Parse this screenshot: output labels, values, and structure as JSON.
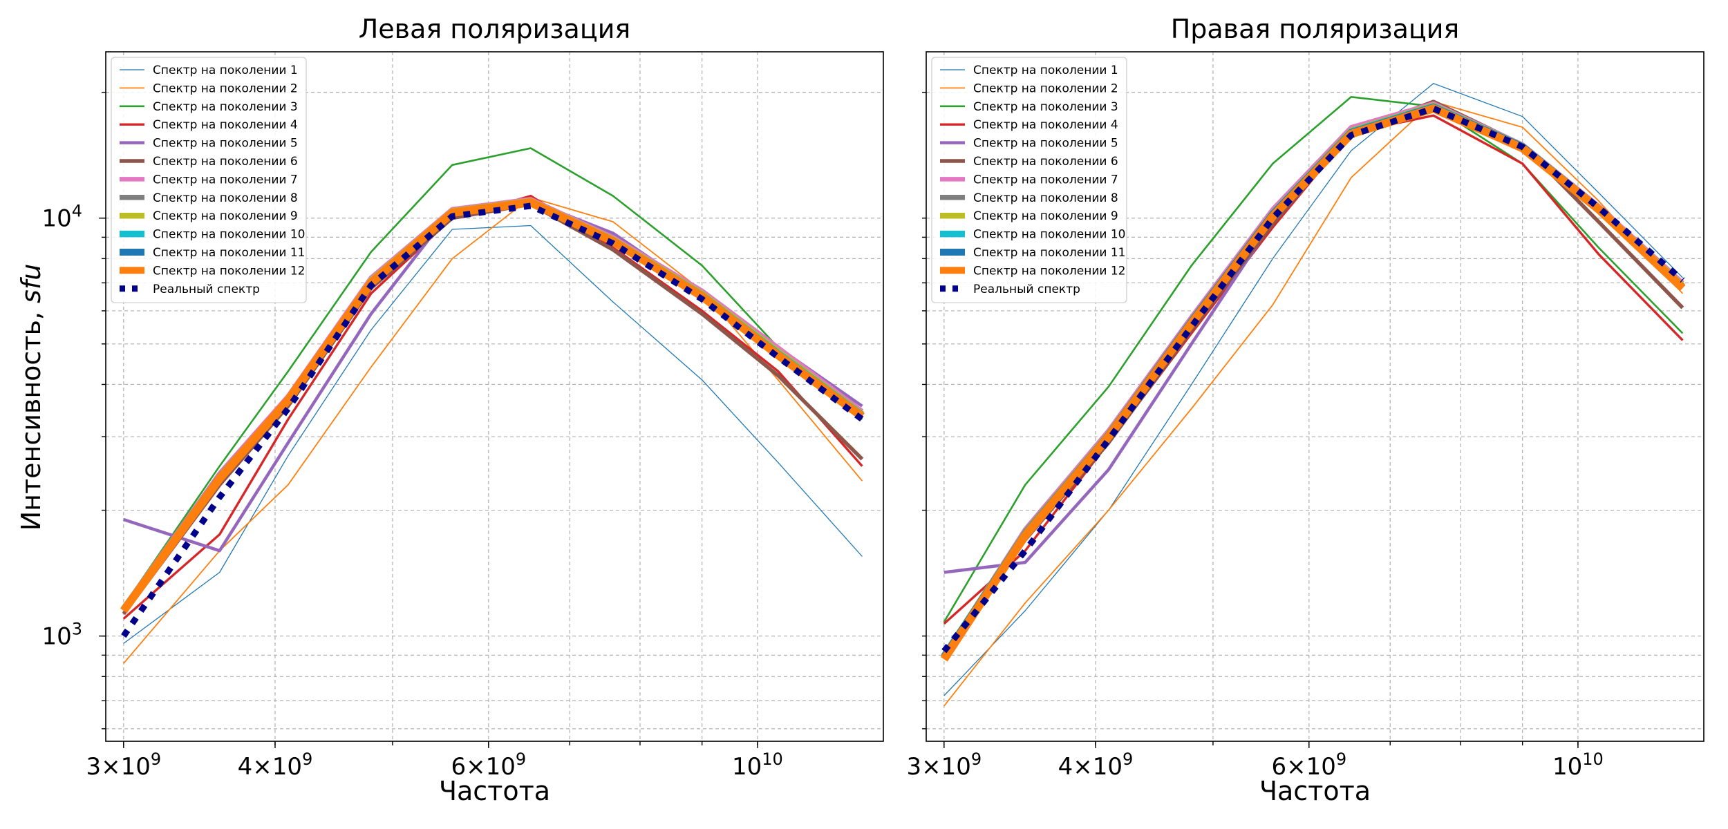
{
  "y_axis_label": "Интенсивность, ",
  "y_axis_label_unit": "sfu",
  "chart_data": [
    {
      "type": "line",
      "title": "Левая поляризация",
      "xlabel": "Частота",
      "ylabel": "Интенсивность, sfu",
      "xscale": "log",
      "yscale": "log",
      "xlim": [
        2900000000.0,
        12700000000.0
      ],
      "ylim": [
        560,
        25000
      ],
      "grid": true,
      "legend_position": "top-left",
      "x_tick_labels": [
        {
          "value": 3000000000.0,
          "mantissa": "3",
          "exp": "9"
        },
        {
          "value": 4000000000.0,
          "mantissa": "4",
          "exp": "9"
        },
        {
          "value": 6000000000.0,
          "mantissa": "6",
          "exp": "9"
        },
        {
          "value": 10000000000.0,
          "mantissa": "",
          "exp": "10"
        }
      ],
      "y_tick_labels": [
        {
          "value": 1000,
          "exp": "3"
        },
        {
          "value": 10000,
          "exp": "4"
        }
      ],
      "x": [
        3000000000.0,
        3600000000.0,
        4100000000.0,
        4800000000.0,
        5600000000.0,
        6500000000.0,
        7600000000.0,
        9000000000.0,
        10400000000.0,
        12200000000.0
      ],
      "series": [
        {
          "name": "Спектр на поколении 1",
          "values": [
            960,
            1420,
            2700,
            5400,
            9400,
            9600,
            6300,
            4100,
            2600,
            1550
          ],
          "color": "#1f77b4",
          "width": 1.3
        },
        {
          "name": "Спектр на поколении 2",
          "values": [
            860,
            1600,
            2300,
            4400,
            8000,
            11200,
            9800,
            6700,
            4100,
            2350
          ],
          "color": "#ff7f0e",
          "width": 1.8
        },
        {
          "name": "Спектр на поколении 3",
          "values": [
            1180,
            2550,
            4300,
            8300,
            13400,
            14700,
            11300,
            7700,
            4900,
            3300
          ],
          "color": "#2ca02c",
          "width": 2.6
        },
        {
          "name": "Спектр на поколении 4",
          "values": [
            1100,
            1750,
            3300,
            6600,
            10000,
            11300,
            8500,
            6000,
            4300,
            2550
          ],
          "color": "#d62728",
          "width": 3.4
        },
        {
          "name": "Спектр на поколении 5",
          "values": [
            1900,
            1600,
            2900,
            5900,
            10500,
            11000,
            9200,
            6600,
            4900,
            3550
          ],
          "color": "#9467bd",
          "width": 4.5
        },
        {
          "name": "Спектр на поколении 6",
          "values": [
            1130,
            2300,
            3550,
            6800,
            10000,
            10800,
            8400,
            5900,
            4200,
            2650
          ],
          "color": "#8c564b",
          "width": 5.5
        },
        {
          "name": "Спектр на поколении 7",
          "values": [
            1170,
            2450,
            3750,
            7200,
            10500,
            11100,
            9000,
            6700,
            4900,
            3450
          ],
          "color": "#e377c2",
          "width": 6.5
        },
        {
          "name": "Спектр на поколении 8",
          "values": [
            1160,
            2420,
            3700,
            7100,
            10400,
            11000,
            8900,
            6600,
            4800,
            3400
          ],
          "color": "#7f7f7f",
          "width": 7.5
        },
        {
          "name": "Спектр на поколении 9",
          "values": [
            1160,
            2410,
            3700,
            7100,
            10400,
            11000,
            8900,
            6600,
            4800,
            3400
          ],
          "color": "#bcbd22",
          "width": 8.5
        },
        {
          "name": "Спектр на поколении 10",
          "values": [
            1160,
            2400,
            3690,
            7050,
            10350,
            10950,
            8850,
            6550,
            4750,
            3380
          ],
          "color": "#17becf",
          "width": 9.5
        },
        {
          "name": "Спектр на поколении 11",
          "values": [
            1150,
            2390,
            3680,
            7000,
            10300,
            10900,
            8800,
            6500,
            4700,
            3360
          ],
          "color": "#1f77b4",
          "width": 10.5
        },
        {
          "name": "Спектр на поколении 12",
          "values": [
            1150,
            2380,
            3670,
            7000,
            10300,
            10900,
            8800,
            6500,
            4700,
            3350
          ],
          "color": "#ff7f0e",
          "width": 12
        },
        {
          "name": "Реальный спектр",
          "values": [
            1000,
            2150,
            3500,
            6900,
            10100,
            10700,
            8700,
            6400,
            4650,
            3300
          ],
          "color": "#00008b",
          "width": 9,
          "dashed": true
        }
      ]
    },
    {
      "type": "line",
      "title": "Правая поляризация",
      "xlabel": "Частота",
      "ylabel": "",
      "xscale": "log",
      "yscale": "log",
      "xlim": [
        2900000000.0,
        12700000000.0
      ],
      "ylim": [
        560,
        25000
      ],
      "grid": true,
      "legend_position": "top-left",
      "x_tick_labels": [
        {
          "value": 3000000000.0,
          "mantissa": "3",
          "exp": "9"
        },
        {
          "value": 4000000000.0,
          "mantissa": "4",
          "exp": "9"
        },
        {
          "value": 6000000000.0,
          "mantissa": "6",
          "exp": "9"
        },
        {
          "value": 10000000000.0,
          "mantissa": "",
          "exp": "10"
        }
      ],
      "y_tick_labels": [],
      "x": [
        3000000000.0,
        3500000000.0,
        4100000000.0,
        4800000000.0,
        5600000000.0,
        6500000000.0,
        7600000000.0,
        9000000000.0,
        10400000000.0,
        12200000000.0
      ],
      "series": [
        {
          "name": "Спектр на поколении 1",
          "values": [
            720,
            1150,
            2000,
            4000,
            8000,
            14500,
            21000,
            17500,
            11500,
            7200
          ],
          "color": "#1f77b4",
          "width": 1.3
        },
        {
          "name": "Спектр на поколении 2",
          "values": [
            680,
            1200,
            2000,
            3500,
            6200,
            12500,
            19000,
            16500,
            11000,
            6600
          ],
          "color": "#ff7f0e",
          "width": 1.8
        },
        {
          "name": "Спектр на поколении 3",
          "values": [
            1080,
            2300,
            3950,
            7700,
            13500,
            19500,
            18500,
            13500,
            8500,
            5300
          ],
          "color": "#2ca02c",
          "width": 2.6
        },
        {
          "name": "Спектр на поколении 4",
          "values": [
            1070,
            1600,
            2900,
            5300,
            9500,
            16000,
            17600,
            13500,
            8200,
            5100
          ],
          "color": "#d62728",
          "width": 3.4
        },
        {
          "name": "Спектр на поколении 5",
          "values": [
            1420,
            1500,
            2500,
            5000,
            9800,
            16000,
            18500,
            15000,
            10500,
            7000
          ],
          "color": "#9467bd",
          "width": 4.5
        },
        {
          "name": "Спектр на поколении 6",
          "values": [
            900,
            1700,
            2900,
            5400,
            9700,
            16000,
            19000,
            15000,
            9800,
            6100
          ],
          "color": "#8c564b",
          "width": 5.5
        },
        {
          "name": "Спектр на поколении 7",
          "values": [
            900,
            1800,
            3100,
            5800,
            10500,
            16500,
            18800,
            15000,
            10700,
            7000
          ],
          "color": "#e377c2",
          "width": 6.5
        },
        {
          "name": "Спектр на поколении 8",
          "values": [
            900,
            1780,
            3050,
            5700,
            10300,
            16200,
            18600,
            14900,
            10600,
            6900
          ],
          "color": "#7f7f7f",
          "width": 7.5
        },
        {
          "name": "Спектр на поколении 9",
          "values": [
            900,
            1770,
            3050,
            5700,
            10300,
            16200,
            18600,
            14900,
            10600,
            6900
          ],
          "color": "#bcbd22",
          "width": 8.5
        },
        {
          "name": "Спектр на поколении 10",
          "values": [
            895,
            1760,
            3030,
            5680,
            10250,
            16100,
            18500,
            14850,
            10550,
            6850
          ],
          "color": "#17becf",
          "width": 9.5
        },
        {
          "name": "Спектр на поколении 11",
          "values": [
            890,
            1750,
            3020,
            5650,
            10200,
            16000,
            18400,
            14800,
            10500,
            6800
          ],
          "color": "#1f77b4",
          "width": 10.5
        },
        {
          "name": "Спектр на поколении 12",
          "values": [
            880,
            1740,
            3000,
            5600,
            10100,
            15900,
            18300,
            14700,
            10500,
            6800
          ],
          "color": "#ff7f0e",
          "width": 12
        },
        {
          "name": "Реальный спектр",
          "values": [
            920,
            1600,
            2950,
            5500,
            10000,
            15800,
            18300,
            14800,
            10600,
            7100
          ],
          "color": "#00008b",
          "width": 9,
          "dashed": true
        }
      ]
    }
  ]
}
